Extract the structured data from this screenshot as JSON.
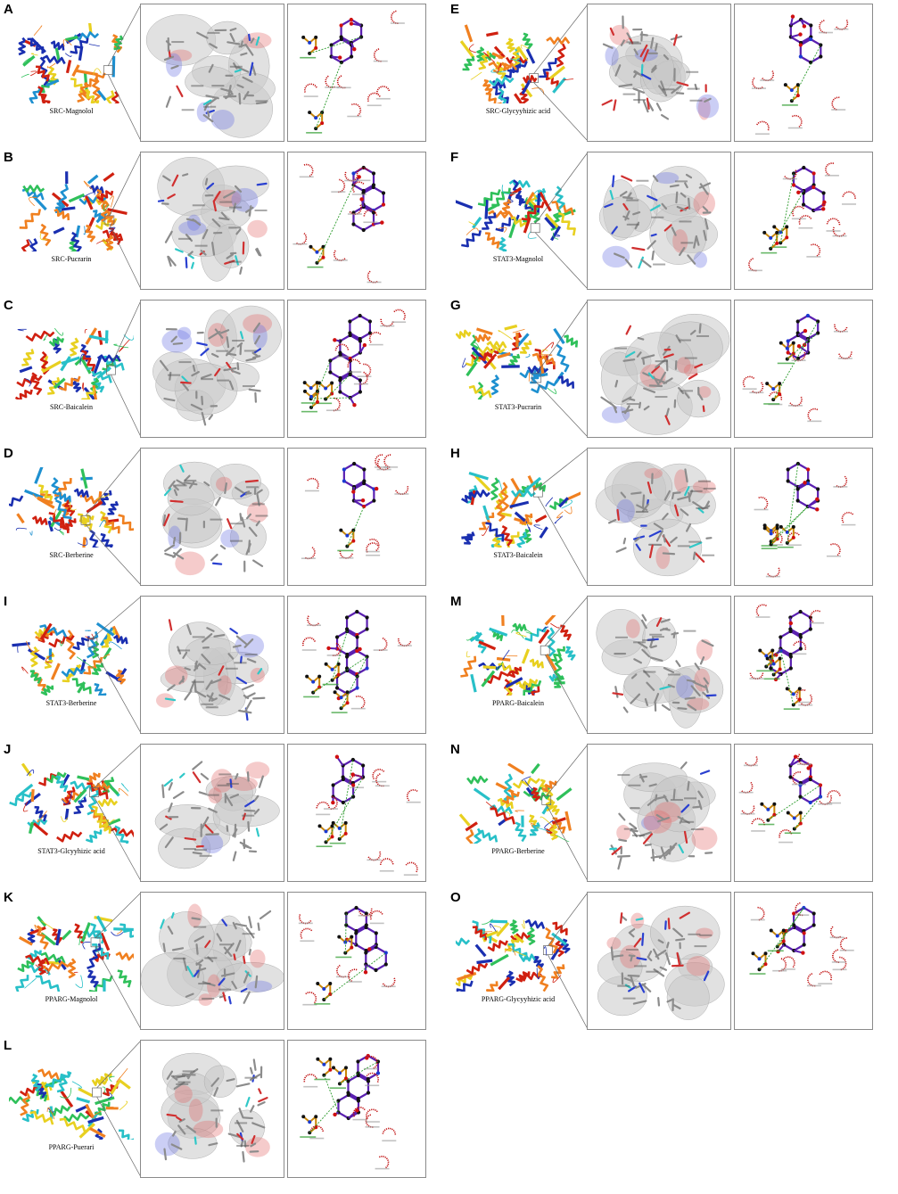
{
  "panels": [
    {
      "letter": "A",
      "caption": "SRC-Magnolol",
      "palette": [
        "#1a2fb0",
        "#1e90d0",
        "#2fc05a",
        "#e8d020",
        "#f08020",
        "#d02010"
      ]
    },
    {
      "letter": "B",
      "caption": "SRC-Pucrarin",
      "palette": [
        "#d02010",
        "#f08020",
        "#e8d020",
        "#2fc05a",
        "#1e90d0",
        "#1a2fb0"
      ]
    },
    {
      "letter": "C",
      "caption": "SRC-Baicalein",
      "palette": [
        "#2fc05a",
        "#e8d020",
        "#f08020",
        "#d02010",
        "#28c0c8",
        "#1a2fb0"
      ]
    },
    {
      "letter": "D",
      "caption": "SRC-Berberine",
      "palette": [
        "#f08020",
        "#e8d020",
        "#d02010",
        "#2fc05a",
        "#1e90d0",
        "#1a2fb0"
      ]
    },
    {
      "letter": "E",
      "caption": "SRC-Glycyyhizic acid",
      "palette": [
        "#e8d020",
        "#f08020",
        "#d02010",
        "#2fc05a",
        "#28c0c8",
        "#1a2fb0"
      ]
    },
    {
      "letter": "F",
      "caption": "STAT3-Magnolol",
      "palette": [
        "#e8d020",
        "#f08020",
        "#2fc05a",
        "#28c0c8",
        "#1a2fb0",
        "#d02010"
      ]
    },
    {
      "letter": "G",
      "caption": "STAT3-Pucrarin",
      "palette": [
        "#1a2fb0",
        "#1e90d0",
        "#2fc05a",
        "#e8d020",
        "#f08020",
        "#d02010"
      ]
    },
    {
      "letter": "H",
      "caption": "STAT3-Baicalein",
      "palette": [
        "#e8d020",
        "#f08020",
        "#2fc05a",
        "#28c0c8",
        "#1a2fb0",
        "#d02010"
      ]
    },
    {
      "letter": "I",
      "caption": "STAT3-Berberine",
      "palette": [
        "#1a2fb0",
        "#1e90d0",
        "#2fc05a",
        "#e8d020",
        "#f08020",
        "#d02010"
      ]
    },
    {
      "letter": "J",
      "caption": "STAT3-Glcyyhizic acid",
      "palette": [
        "#e8d020",
        "#f08020",
        "#d02010",
        "#2fc05a",
        "#28c0c8",
        "#1a2fb0"
      ]
    },
    {
      "letter": "K",
      "caption": "PPARG-Magnolol",
      "palette": [
        "#2fc05a",
        "#e8d020",
        "#f08020",
        "#d02010",
        "#28c0c8",
        "#1a2fb0"
      ]
    },
    {
      "letter": "L",
      "caption": "PPARG-Puerari",
      "palette": [
        "#1a2fb0",
        "#28c0c8",
        "#2fc05a",
        "#e8d020",
        "#f08020",
        "#d02010"
      ]
    },
    {
      "letter": "M",
      "caption": "PPARG-Baicalein",
      "palette": [
        "#f08020",
        "#e8d020",
        "#d02010",
        "#2fc05a",
        "#28c0c8",
        "#1a2fb0"
      ]
    },
    {
      "letter": "N",
      "caption": "PPARG-Berberine",
      "palette": [
        "#f08020",
        "#e8d020",
        "#d02010",
        "#2fc05a",
        "#28c0c8",
        "#1a2fb0"
      ]
    },
    {
      "letter": "O",
      "caption": "PPARG-Glycyyhizic acid",
      "palette": [
        "#2fc05a",
        "#e8d020",
        "#f08020",
        "#d02010",
        "#28c0c8",
        "#1a2fb0"
      ]
    }
  ],
  "colors": {
    "frame": "#8a8a8a",
    "surface_grey": "#c9c9c9",
    "surface_red": "#e26a6a",
    "surface_blue": "#6a74e2",
    "ligand_bond": "#5a1fb0",
    "ligand_atom": "#111111",
    "oxygen": "#d01010",
    "nitrogen": "#1a3ad0",
    "residue_bond": "#c8860a",
    "hydrophobic_arc": "#c01010",
    "hbond": "#2a9a2a"
  }
}
